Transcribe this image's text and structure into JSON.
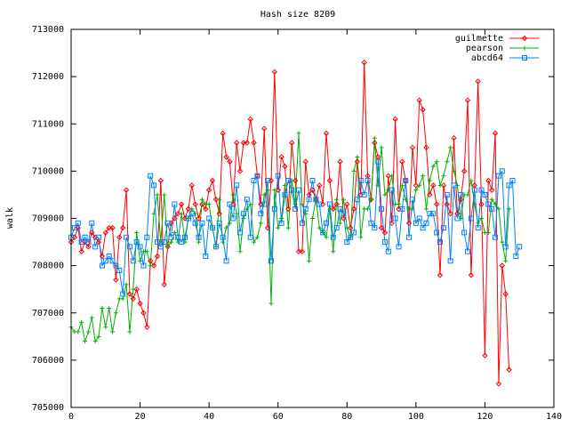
{
  "chart_data": {
    "type": "line",
    "title": "Hash size 8209",
    "xlabel": "",
    "ylabel": "walk",
    "xlim": [
      0,
      140
    ],
    "ylim": [
      705000,
      713000
    ],
    "x_ticks": [
      "0",
      "20",
      "40",
      "60",
      "80",
      "100",
      "120",
      "140"
    ],
    "y_ticks": [
      "705000",
      "706000",
      "707000",
      "708000",
      "709000",
      "710000",
      "711000",
      "712000",
      "713000"
    ],
    "grid": false,
    "legend_position": "top-right",
    "series": [
      {
        "name": "guilmette",
        "color": "#ff0000",
        "marker": "diamond",
        "values": [
          708500,
          708600,
          708800,
          708300,
          708500,
          708400,
          708700,
          708600,
          708500,
          708200,
          708700,
          708800,
          708800,
          707700,
          708600,
          708800,
          709600,
          707400,
          707300,
          707500,
          707200,
          707000,
          706700,
          708100,
          708000,
          708200,
          709800,
          707600,
          708400,
          708900,
          709000,
          709100,
          709300,
          709000,
          709200,
          709700,
          709300,
          709000,
          709300,
          709200,
          709600,
          709800,
          709400,
          709100,
          710800,
          710300,
          710200,
          709300,
          710600,
          710000,
          710600,
          710600,
          711100,
          710600,
          709900,
          709300,
          710900,
          708800,
          709800,
          712100,
          709600,
          710300,
          710100,
          709200,
          710600,
          709800,
          708300,
          708300,
          710200,
          709500,
          709600,
          709400,
          709700,
          709300,
          710800,
          709800,
          709200,
          709300,
          710200,
          709000,
          709300,
          708800,
          709200,
          710200,
          709500,
          712300,
          709900,
          709400,
          710600,
          710300,
          708800,
          708700,
          709900,
          708900,
          711100,
          709200,
          710200,
          709800,
          708900,
          710500,
          709700,
          711500,
          711300,
          710500,
          709500,
          709700,
          709300,
          707800,
          709700,
          709300,
          709100,
          710700,
          709100,
          709400,
          710000,
          711500,
          707800,
          709700,
          711900,
          709300,
          706100,
          709800,
          709600,
          710800,
          705500,
          708000,
          707400,
          705800
        ]
      },
      {
        "name": "pearson",
        "color": "#00b000",
        "marker": "plus",
        "values": [
          706700,
          706600,
          706600,
          706800,
          706400,
          706600,
          706900,
          706400,
          706500,
          707100,
          706700,
          707100,
          706600,
          707000,
          707300,
          707300,
          707600,
          706600,
          707500,
          708700,
          708100,
          708300,
          708300,
          708000,
          709100,
          709500,
          708500,
          709500,
          708400,
          708500,
          708700,
          708500,
          709100,
          708500,
          709000,
          709200,
          709100,
          708500,
          709400,
          709300,
          709300,
          708800,
          708400,
          709400,
          708500,
          708800,
          708900,
          709500,
          709100,
          708300,
          709000,
          709200,
          709300,
          708500,
          708600,
          708900,
          709500,
          709600,
          707200,
          709600,
          708800,
          709000,
          709700,
          708800,
          709800,
          709300,
          710800,
          709300,
          709100,
          708100,
          709000,
          709400,
          708800,
          708700,
          708600,
          709200,
          708300,
          709400,
          708900,
          709400,
          708800,
          708600,
          710000,
          710300,
          708600,
          709200,
          709200,
          709400,
          710700,
          709700,
          710500,
          709500,
          709600,
          709900,
          709300,
          709300,
          709700,
          709400,
          709200,
          709200,
          709600,
          709700,
          709900,
          709200,
          709800,
          710100,
          710200,
          709700,
          709900,
          710200,
          710500,
          710000,
          709700,
          709000,
          709500,
          709500,
          709800,
          709300,
          708900,
          709000,
          708700,
          708700,
          709400,
          709300,
          709200,
          708500,
          708100,
          709200
        ]
      },
      {
        "name": "abcd64",
        "color": "#0080ff",
        "marker": "square",
        "values": [
          708600,
          708800,
          708900,
          708500,
          708600,
          708500,
          708900,
          708400,
          708600,
          708000,
          708100,
          708200,
          708100,
          708000,
          707900,
          707400,
          708600,
          708400,
          708100,
          708500,
          708400,
          708000,
          708600,
          709900,
          709700,
          708500,
          708400,
          708500,
          708900,
          708600,
          709300,
          708600,
          708500,
          708600,
          709000,
          709100,
          708900,
          708600,
          708900,
          708200,
          709000,
          708800,
          708400,
          708900,
          708600,
          708100,
          709300,
          709000,
          709700,
          708700,
          709100,
          709400,
          708600,
          709800,
          709900,
          709100,
          709300,
          709800,
          708100,
          709200,
          709900,
          708900,
          709500,
          709800,
          709600,
          709200,
          709600,
          708900,
          709200,
          709400,
          709800,
          709400,
          709300,
          708700,
          708900,
          709300,
          708600,
          708800,
          709200,
          709100,
          708500,
          708600,
          708700,
          709400,
          709800,
          709500,
          709800,
          708900,
          708800,
          710200,
          709200,
          708500,
          708300,
          709600,
          709000,
          708400,
          709200,
          709800,
          708600,
          709400,
          708900,
          709000,
          708800,
          708900,
          709100,
          709100,
          708700,
          708500,
          708800,
          709500,
          708100,
          709700,
          709000,
          709500,
          708700,
          708300,
          709000,
          709600,
          708800,
          709600,
          709500,
          709300,
          709200,
          708600,
          709900,
          710000,
          708400,
          709700,
          709800,
          708200,
          708400
        ]
      }
    ]
  }
}
